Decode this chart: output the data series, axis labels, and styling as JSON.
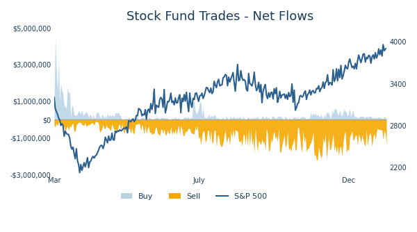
{
  "title": "Stock Fund Trades - Net Flows",
  "title_fontsize": 13,
  "background_color": "#ffffff",
  "left_ylim": [
    -3000000,
    5000000
  ],
  "right_ylim": [
    2100,
    4200
  ],
  "left_yticks": [
    -3000000,
    -1000000,
    0,
    1000000,
    3000000,
    5000000
  ],
  "left_yticklabels": [
    "-$3,000,000",
    "-$1,000,000",
    "$0",
    "$1,000,000",
    "$3,000,000",
    "$5,000,000"
  ],
  "right_yticks": [
    2200,
    2800,
    3400,
    4000
  ],
  "right_yticklabels": [
    "2200",
    "2800",
    "3400",
    "4000"
  ],
  "buy_color": "#b8d4e3",
  "sell_color": "#f5a800",
  "sp500_color": "#2a5f8f",
  "sp500_linewidth": 1.5,
  "legend_labels": [
    "Buy",
    "Sell",
    "S&P 500"
  ],
  "x_tick_positions": [
    0,
    130,
    265
  ],
  "x_tick_labels": [
    "Mar",
    "July",
    "Dec"
  ],
  "font_color": "#1a3a5c"
}
